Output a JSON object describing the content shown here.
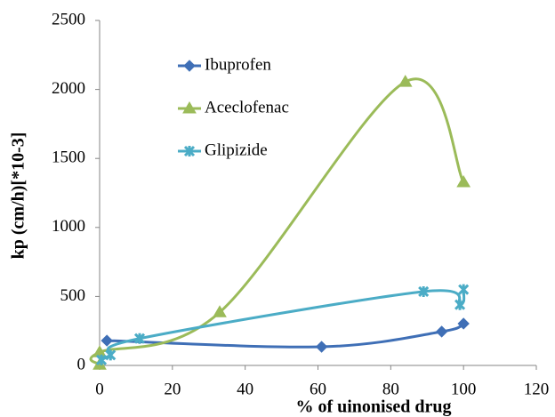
{
  "chart_data": {
    "type": "line",
    "smooth": true,
    "x_label": "% of uinonised drug",
    "y_label": "kp (cm/h)[*10-3]",
    "xlim": [
      0,
      120
    ],
    "xticks": [
      0,
      20,
      40,
      60,
      80,
      100,
      120
    ],
    "ylim": [
      0,
      2500
    ],
    "yticks": [
      0,
      500,
      1000,
      1500,
      2000,
      2500
    ],
    "grid": false,
    "legend": "upper left",
    "series": [
      {
        "name": "Ibuprofen",
        "color": "#3f6fb6",
        "marker": "diamond",
        "x": [
          2,
          61,
          94,
          100
        ],
        "values": [
          180,
          135,
          245,
          303
        ]
      },
      {
        "name": "Aceclofenac",
        "color": "#9bbb59",
        "marker": "triangle",
        "x": [
          0,
          0,
          33,
          84,
          100
        ],
        "values": [
          5,
          95,
          385,
          2055,
          1327
        ]
      },
      {
        "name": "Glipizide",
        "color": "#4bacc6",
        "marker": "star",
        "x": [
          0.5,
          3,
          11,
          89,
          99,
          100
        ],
        "values": [
          40,
          75,
          195,
          535,
          440,
          550
        ]
      }
    ]
  }
}
